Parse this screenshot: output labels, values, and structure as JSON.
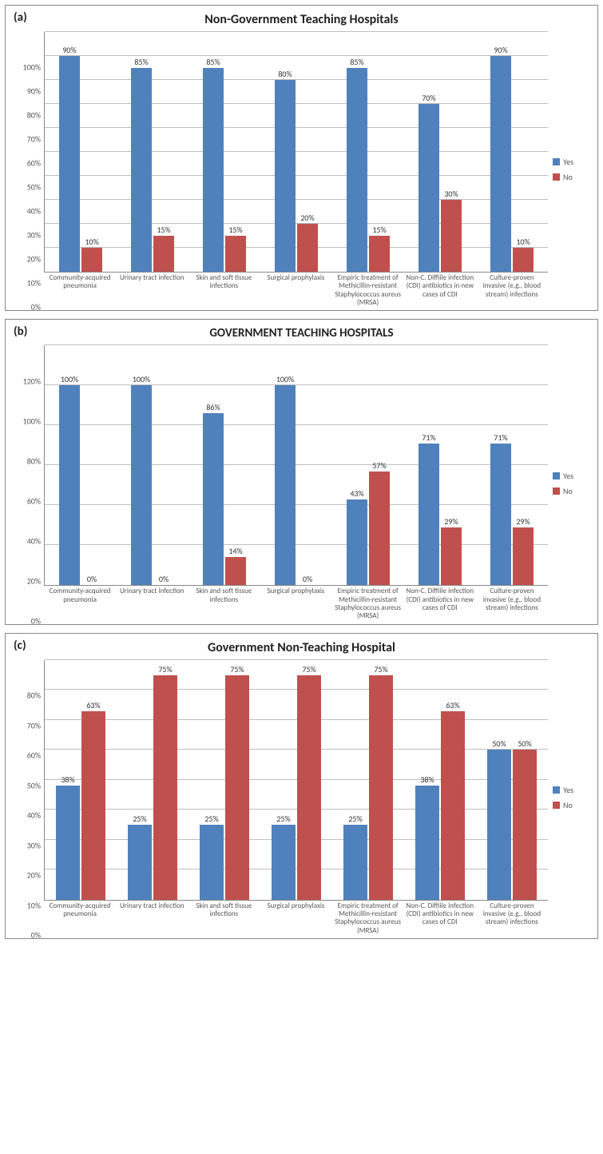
{
  "colors": {
    "yes": "#4f81bd",
    "no": "#c0504d",
    "grid": "#bfbfbf",
    "axis": "#888888",
    "text": "#595959",
    "title": "#222222",
    "background": "#ffffff"
  },
  "legend": {
    "yes": "Yes",
    "no": "No"
  },
  "panels": [
    {
      "id": "a",
      "label": "(a)",
      "title": "Non-Government Teaching Hospitals",
      "title_fontsize": 16,
      "ymax": 100,
      "ytick_step": 10,
      "categories": [
        "Community-acquired pneumonia",
        "Urinary tract infection",
        "Skin and soft tissue infections",
        "Surgical prophylaxis",
        "Empiric treatment of Methicillin-resistant Staphylococcus aureus (MRSA)",
        "Non-C. Diffiile infection (CDI) antibiotics in new cases of CDI",
        "Culture-proven invasive (e.g., blood stream) infections"
      ],
      "yes": [
        90,
        85,
        85,
        80,
        85,
        70,
        90
      ],
      "no": [
        10,
        15,
        15,
        20,
        15,
        30,
        10
      ]
    },
    {
      "id": "b",
      "label": "(b)",
      "title": "GOVERNMENT TEACHING HOSPITALS",
      "title_fontsize": 15,
      "ymax": 120,
      "ytick_step": 20,
      "categories": [
        "Community-acquired pneumonia",
        "Urinary tract infection",
        "Skin and soft tissue infections",
        "Surgical prophylaxis",
        "Empiric treatment of Methicillin-resistant Staphylococcus aureus (MRSA)",
        "Non-C. Diffiile infection (CDI) antibiotics in new cases of CDI",
        "Culture-proven invasive (e.g., blood stream) infections"
      ],
      "yes": [
        100,
        100,
        86,
        100,
        43,
        71,
        71
      ],
      "no": [
        0,
        0,
        14,
        0,
        57,
        29,
        29
      ]
    },
    {
      "id": "c",
      "label": "(c)",
      "title": "Government Non-Teaching Hospital",
      "title_fontsize": 16,
      "ymax": 80,
      "ytick_step": 10,
      "categories": [
        "Community-acquired pneumonia",
        "Urinary tract infection",
        "Skin and soft tissue infections",
        "Surgical prophylaxis",
        "Empiric treatment of Methicillin-resistant Staphylococcus aureus (MRSA)",
        "Non-C. Diffiile infection (CDI) antibiotics in new cases of CDI",
        "Culture-proven invasive (e.g., blood stream) infections"
      ],
      "yes": [
        38,
        25,
        25,
        25,
        25,
        38,
        50
      ],
      "no": [
        63,
        75,
        75,
        75,
        75,
        63,
        50
      ]
    }
  ]
}
